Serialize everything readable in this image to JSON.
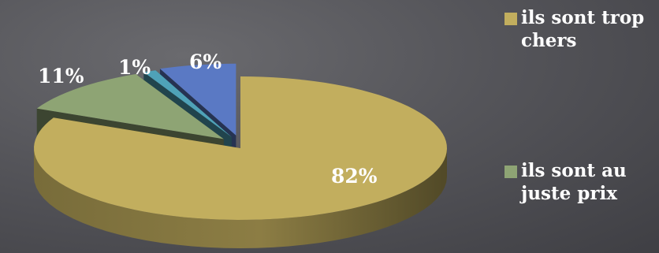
{
  "chart_data": {
    "type": "pie",
    "style": "3d-exploded",
    "categories": [
      "ils sont trop chers",
      "ils sont au juste prix",
      "",
      ""
    ],
    "values": [
      82,
      11,
      1,
      6
    ],
    "labels": [
      "82%",
      "11%",
      "1%",
      "6%"
    ],
    "colors": [
      "#c2ae5e",
      "#8ea474",
      "#4fa2b8",
      "#5a79c4"
    ],
    "legend_position": "right"
  },
  "legend": {
    "items": [
      {
        "label": "ils sont trop chers",
        "color": "#c2ae5e"
      },
      {
        "label": "ils sont au juste prix",
        "color": "#8ea474"
      }
    ]
  }
}
